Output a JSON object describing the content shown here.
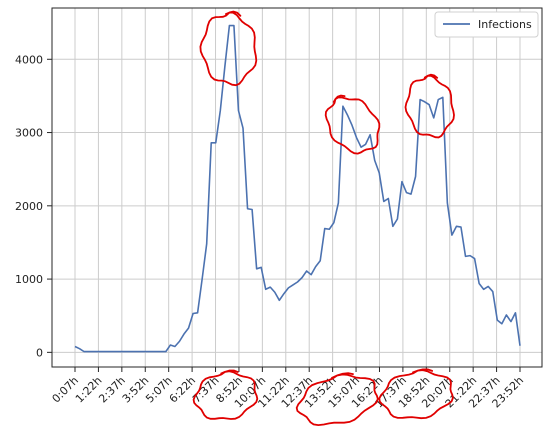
{
  "chart_data": {
    "type": "line",
    "title": "",
    "xlabel": "",
    "ylabel": "",
    "x_tick_labels": [
      "0:07h",
      "1:22h",
      "2:37h",
      "3:52h",
      "5:07h",
      "6:22h",
      "7:37h",
      "8:52h",
      "10:07h",
      "11:22h",
      "12:37h",
      "13:52h",
      "15:07h",
      "16:22h",
      "17:37h",
      "18:52h",
      "20:07h",
      "21:22h",
      "22:37h",
      "23:52h"
    ],
    "y_ticks": [
      0,
      1000,
      2000,
      3000,
      4000
    ],
    "ylim": [
      -200,
      4700
    ],
    "grid": true,
    "legend_position": "top-right",
    "series": [
      {
        "name": "Infections",
        "color": "#4c72b0",
        "values": [
          80,
          50,
          10,
          10,
          10,
          10,
          10,
          10,
          10,
          10,
          10,
          10,
          10,
          10,
          10,
          10,
          10,
          10,
          10,
          10,
          10,
          100,
          80,
          150,
          250,
          330,
          530,
          540,
          1000,
          1480,
          2860,
          2860,
          3300,
          3900,
          4460,
          4460,
          3300,
          3060,
          1960,
          1950,
          1140,
          1160,
          860,
          890,
          820,
          710,
          800,
          880,
          920,
          960,
          1020,
          1110,
          1060,
          1170,
          1250,
          1690,
          1680,
          1770,
          2040,
          3360,
          3240,
          3100,
          2930,
          2800,
          2840,
          2970,
          2620,
          2450,
          2060,
          2100,
          1720,
          1820,
          2330,
          2180,
          2160,
          2400,
          3450,
          3420,
          3380,
          3200,
          3450,
          3480,
          2040,
          1600,
          1720,
          1710,
          1310,
          1320,
          1280,
          940,
          860,
          900,
          830,
          440,
          390,
          510,
          420,
          540,
          90
        ]
      }
    ],
    "annotations": [
      {
        "shape": "freehand-circle",
        "color": "#e00000",
        "target": "peak near 7:37h"
      },
      {
        "shape": "freehand-circle",
        "color": "#e00000",
        "target": "peak near 13:52h"
      },
      {
        "shape": "freehand-circle",
        "color": "#e00000",
        "target": "peak near 18:52h"
      },
      {
        "shape": "freehand-circle",
        "color": "#e00000",
        "target": "x tick labels 7:37h and 8:52h"
      },
      {
        "shape": "freehand-circle",
        "color": "#e00000",
        "target": "x tick labels 13:52h and 15:07h"
      },
      {
        "shape": "freehand-circle",
        "color": "#e00000",
        "target": "x tick labels 17:37h and 18:52h"
      }
    ]
  }
}
